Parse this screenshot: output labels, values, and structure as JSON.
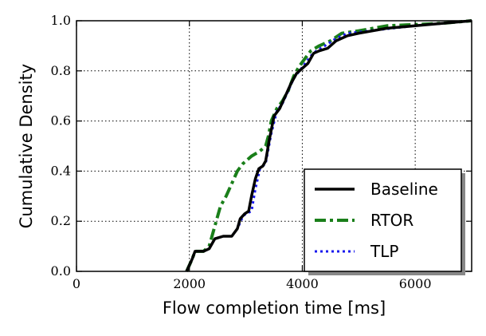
{
  "chart_data": {
    "type": "line",
    "xlabel": "Flow completion time [ms]",
    "ylabel": "Cumulative Density",
    "xlim": [
      0,
      7000
    ],
    "ylim": [
      0.0,
      1.0
    ],
    "xticks": [
      0,
      2000,
      4000,
      6000
    ],
    "yticks": [
      0.0,
      0.2,
      0.4,
      0.6,
      0.8,
      1.0
    ],
    "xtick_labels": [
      "0",
      "2000",
      "4000",
      "6000"
    ],
    "ytick_labels": [
      "0.0",
      "0.2",
      "0.4",
      "0.6",
      "0.8",
      "1.0"
    ],
    "grid": true,
    "legend_position": "lower-right",
    "series": [
      {
        "name": "Baseline",
        "color": "#000000",
        "style": "solid",
        "points": [
          [
            1950,
            0.0
          ],
          [
            2050,
            0.05
          ],
          [
            2100,
            0.08
          ],
          [
            2250,
            0.08
          ],
          [
            2350,
            0.09
          ],
          [
            2450,
            0.13
          ],
          [
            2600,
            0.14
          ],
          [
            2750,
            0.14
          ],
          [
            2850,
            0.17
          ],
          [
            2900,
            0.21
          ],
          [
            2980,
            0.23
          ],
          [
            3050,
            0.24
          ],
          [
            3100,
            0.3
          ],
          [
            3170,
            0.37
          ],
          [
            3230,
            0.41
          ],
          [
            3300,
            0.42
          ],
          [
            3350,
            0.44
          ],
          [
            3420,
            0.53
          ],
          [
            3500,
            0.62
          ],
          [
            3600,
            0.65
          ],
          [
            3700,
            0.7
          ],
          [
            3800,
            0.75
          ],
          [
            3900,
            0.79
          ],
          [
            4000,
            0.81
          ],
          [
            4100,
            0.83
          ],
          [
            4200,
            0.87
          ],
          [
            4300,
            0.88
          ],
          [
            4450,
            0.89
          ],
          [
            4600,
            0.92
          ],
          [
            4800,
            0.94
          ],
          [
            5000,
            0.95
          ],
          [
            5500,
            0.97
          ],
          [
            6000,
            0.98
          ],
          [
            6500,
            0.99
          ],
          [
            7000,
            1.0
          ]
        ]
      },
      {
        "name": "RTOR",
        "color": "#1a7f1a",
        "style": "dashdot",
        "points": [
          [
            1950,
            0.0
          ],
          [
            2050,
            0.05
          ],
          [
            2100,
            0.08
          ],
          [
            2250,
            0.08
          ],
          [
            2350,
            0.1
          ],
          [
            2450,
            0.18
          ],
          [
            2550,
            0.26
          ],
          [
            2650,
            0.3
          ],
          [
            2750,
            0.35
          ],
          [
            2850,
            0.4
          ],
          [
            2950,
            0.43
          ],
          [
            3100,
            0.46
          ],
          [
            3250,
            0.48
          ],
          [
            3350,
            0.5
          ],
          [
            3400,
            0.54
          ],
          [
            3450,
            0.6
          ],
          [
            3550,
            0.65
          ],
          [
            3650,
            0.68
          ],
          [
            3750,
            0.72
          ],
          [
            3850,
            0.78
          ],
          [
            3950,
            0.82
          ],
          [
            4050,
            0.85
          ],
          [
            4150,
            0.88
          ],
          [
            4300,
            0.9
          ],
          [
            4500,
            0.92
          ],
          [
            4700,
            0.95
          ],
          [
            5000,
            0.96
          ],
          [
            5500,
            0.98
          ],
          [
            6000,
            0.985
          ],
          [
            6500,
            0.99
          ],
          [
            7000,
            1.0
          ]
        ]
      },
      {
        "name": "TLP",
        "color": "#1a1aee",
        "style": "dotted",
        "points": [
          [
            1950,
            0.0
          ],
          [
            2050,
            0.05
          ],
          [
            2100,
            0.08
          ],
          [
            2250,
            0.08
          ],
          [
            2350,
            0.09
          ],
          [
            2450,
            0.13
          ],
          [
            2600,
            0.14
          ],
          [
            2750,
            0.14
          ],
          [
            2850,
            0.17
          ],
          [
            2950,
            0.22
          ],
          [
            3000,
            0.23
          ],
          [
            3100,
            0.24
          ],
          [
            3170,
            0.33
          ],
          [
            3250,
            0.41
          ],
          [
            3350,
            0.43
          ],
          [
            3450,
            0.55
          ],
          [
            3550,
            0.64
          ],
          [
            3650,
            0.67
          ],
          [
            3750,
            0.72
          ],
          [
            3850,
            0.77
          ],
          [
            3950,
            0.8
          ],
          [
            4050,
            0.83
          ],
          [
            4150,
            0.86
          ],
          [
            4250,
            0.88
          ],
          [
            4400,
            0.9
          ],
          [
            4600,
            0.93
          ],
          [
            4800,
            0.95
          ],
          [
            5200,
            0.96
          ],
          [
            5600,
            0.97
          ],
          [
            6000,
            0.98
          ],
          [
            6500,
            0.99
          ],
          [
            7000,
            1.0
          ]
        ]
      }
    ]
  }
}
